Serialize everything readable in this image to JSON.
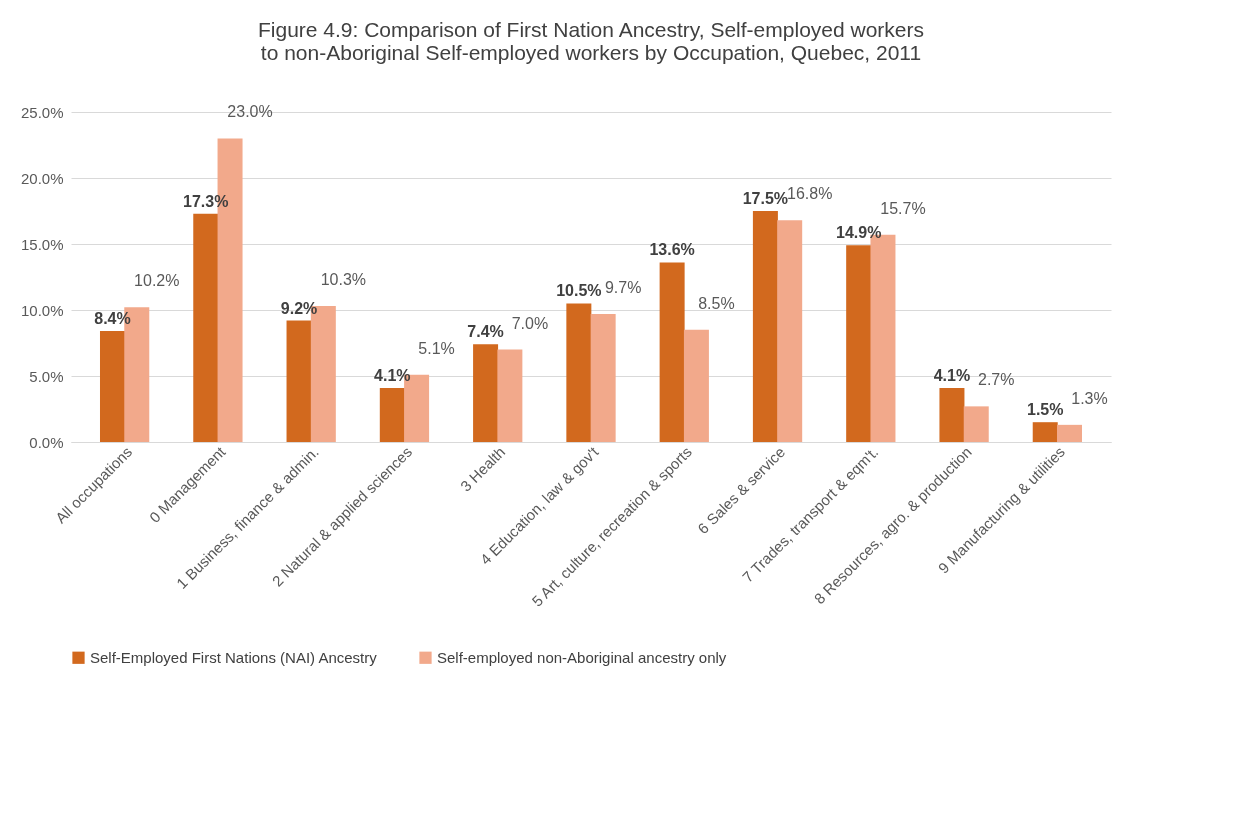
{
  "chart_data": {
    "type": "bar",
    "title": "Figure 4.9: Comparison of First Nation Ancestry, Self-employed workers to non-Aboriginal Self-employed workers by Occupation, Quebec, 2011",
    "categories": [
      "All occupations",
      "0 Management",
      "1 Business, finance & admin.",
      "2 Natural & applied sciences",
      "3 Health",
      "4 Education, law &  gov't",
      "5 Art, culture, recreation & sports",
      "6 Sales & service",
      "7 Trades, transport & eqm't.",
      "8 Resources, agro. & production",
      "9 Manufacturing & utilities"
    ],
    "series": [
      {
        "name": "Self-Employed First Nations (NAI) Ancestry",
        "color": "#d2691e",
        "values": [
          8.4,
          17.3,
          9.2,
          4.1,
          7.4,
          10.5,
          13.6,
          17.5,
          14.9,
          4.1,
          1.5
        ],
        "value_labels": [
          "8.4%",
          "17.3%",
          "9.2%",
          "4.1%",
          "7.4%",
          "10.5%",
          "13.6%",
          "17.5%",
          "14.9%",
          "4.1%",
          "1.5%"
        ]
      },
      {
        "name": "Self-employed non-Aboriginal ancestry only",
        "color": "#f2a98b",
        "values": [
          10.2,
          23.0,
          10.3,
          5.1,
          7.0,
          9.7,
          8.5,
          16.8,
          15.7,
          2.7,
          1.3
        ],
        "value_labels": [
          "10.2%",
          "23.0%",
          "10.3%",
          "5.1%",
          "7.0%",
          "9.7%",
          "8.5%",
          "16.8%",
          "15.7%",
          "2.7%",
          "1.3%"
        ]
      }
    ],
    "ylim": [
      0,
      25
    ],
    "yticks": [
      {
        "value": 0,
        "label": "0.0%"
      },
      {
        "value": 5,
        "label": "5.0%"
      },
      {
        "value": 10,
        "label": "10.0%"
      },
      {
        "value": 15,
        "label": "15.0%"
      },
      {
        "value": 20,
        "label": "20.0%"
      },
      {
        "value": 25,
        "label": "25.0%"
      }
    ],
    "grid": "y",
    "legend": "bottom"
  }
}
